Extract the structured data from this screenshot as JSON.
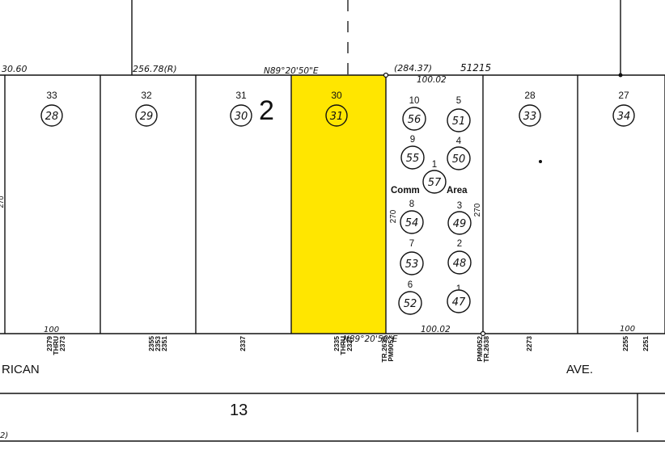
{
  "map": {
    "block_number": "2",
    "lower_block_number": "13",
    "street_left": "RICAN",
    "street_right": "AVE.",
    "highlight_color": "#FFE600",
    "line_color": "#111111",
    "dims": {
      "left_edge": "30.60",
      "top_mid": "256.78(R)",
      "bearing_top": "N89°20'50\"E",
      "bearing_bottom": "N89°20'50\"E",
      "bracket": "(284.37)",
      "sheet_ref": "51215",
      "condo_width_top": "100.02",
      "condo_width_bottom": "100.02",
      "depth_left": "270",
      "depth_right": "270",
      "bottom_left_100": "100",
      "bottom_right_100": "100",
      "left_depth_partial": "270",
      "bottom_left_partial": "2)"
    },
    "lots": [
      {
        "lot": "33",
        "parcel": "28"
      },
      {
        "lot": "32",
        "parcel": "29"
      },
      {
        "lot": "31",
        "parcel": "30"
      },
      {
        "lot": "30",
        "parcel": "31",
        "highlighted": true
      },
      {
        "lot": "28",
        "parcel": "33"
      },
      {
        "lot": "27",
        "parcel": "34"
      }
    ],
    "condo_units": [
      {
        "unit": "10",
        "parcel": "56"
      },
      {
        "unit": "5",
        "parcel": "51"
      },
      {
        "unit": "9",
        "parcel": "55"
      },
      {
        "unit": "4",
        "parcel": "50"
      },
      {
        "unit": "1",
        "parcel": "57"
      },
      {
        "unit": "8",
        "parcel": "54"
      },
      {
        "unit": "3",
        "parcel": "49"
      },
      {
        "unit": "7",
        "parcel": "53"
      },
      {
        "unit": "2",
        "parcel": "48"
      },
      {
        "unit": "6",
        "parcel": "52"
      },
      {
        "unit": "1",
        "parcel": "47"
      }
    ],
    "common_area_label_1": "Comm",
    "common_area_label_2": "Area",
    "addresses": [
      {
        "line1": "2379",
        "line2": "THRU",
        "line3": "2373"
      },
      {
        "line1": "2355",
        "line2": "2353",
        "line3": "2351"
      },
      {
        "line1": "2337"
      },
      {
        "line1": "2335",
        "line2": "THRU",
        "line3": "2327"
      },
      {
        "line1": "TR.2638",
        "line2": "PM9052"
      },
      {
        "line1": "PM9052",
        "line2": "TR.2638"
      },
      {
        "line1": "2273"
      },
      {
        "line1": "2255"
      },
      {
        "line1": "2251"
      }
    ]
  }
}
